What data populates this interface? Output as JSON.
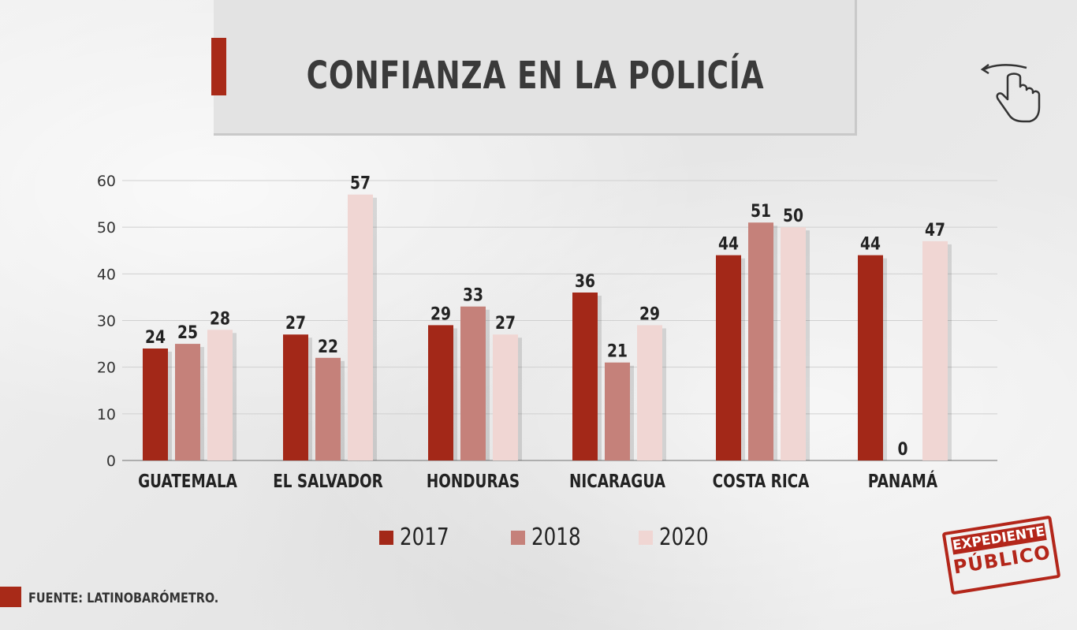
{
  "title": "CONFIANZA EN LA POLICÍA",
  "source": "FUENTE: LATINOBARÓMETRO.",
  "stamp": {
    "line1": "EXPEDIENTE",
    "line2": "PÚBLICO"
  },
  "icons": {
    "swipe": "swipe-hand-icon"
  },
  "colors": {
    "accent": "#a82a18",
    "s2017": "#a32818",
    "s2018": "#c5817a",
    "s2020": "#f0d6d3"
  },
  "chart_data": {
    "type": "bar",
    "title": "CONFIANZA EN LA POLICÍA",
    "categories": [
      "GUATEMALA",
      "EL SALVADOR",
      "HONDURAS",
      "NICARAGUA",
      "COSTA RICA",
      "PANAMÁ"
    ],
    "series": [
      {
        "name": "2017",
        "color": "#a32818",
        "values": [
          24,
          27,
          29,
          36,
          44,
          44
        ]
      },
      {
        "name": "2018",
        "color": "#c5817a",
        "values": [
          25,
          22,
          33,
          21,
          51,
          0
        ]
      },
      {
        "name": "2020",
        "color": "#f0d6d3",
        "values": [
          28,
          57,
          27,
          29,
          50,
          47
        ]
      }
    ],
    "yticks": [
      0,
      10,
      20,
      30,
      40,
      50,
      60
    ],
    "ylim": [
      0,
      60
    ],
    "xlabel": "",
    "ylabel": "",
    "grid": true,
    "legend": "bottom-center"
  }
}
